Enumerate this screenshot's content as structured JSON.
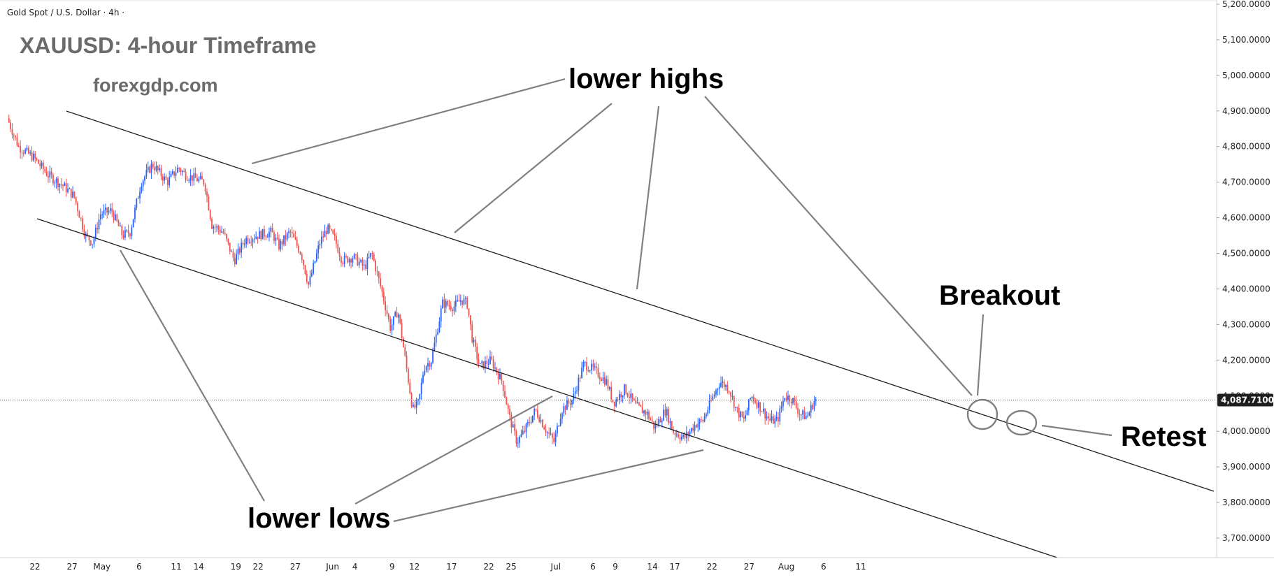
{
  "header": {
    "symbol": "Gold Spot / U.S. Dollar · 4h ·"
  },
  "overlay": {
    "title": "XAUUSD: 4-hour Timeframe",
    "website": "forexgdp.com"
  },
  "annotations": {
    "lower_highs": "lower highs",
    "lower_lows": "lower lows",
    "breakout": "Breakout",
    "retest": "Retest"
  },
  "colors": {
    "up": "#2962ff",
    "down": "#ef5350",
    "trendline": "#1e1e1e",
    "pointer": "#808080",
    "price_box": "#1e1e1e"
  },
  "chart_data": {
    "type": "candlestick",
    "symbol": "XAUUSD",
    "timeframe": "4h",
    "current_price": 4087.71,
    "current_price_label": "4,087.7100",
    "ylim": [
      3660,
      5200
    ],
    "y_ticks": [
      5200,
      5100,
      5000,
      4900,
      4800,
      4700,
      4600,
      4500,
      4400,
      4300,
      4200,
      4100,
      4000,
      3900,
      3800,
      3700
    ],
    "y_tick_labels": [
      "5,200.0000",
      "5,100.0000",
      "5,000.0000",
      "4,900.0000",
      "4,800.0000",
      "4,700.0000",
      "4,600.0000",
      "4,500.0000",
      "4,400.0000",
      "4,300.0000",
      "4,200.0000",
      "4,100.0000",
      "4,000.0000",
      "3,900.0000",
      "3,800.0000",
      "3,700.0000"
    ],
    "x_ticks": [
      {
        "label": "22",
        "day": 0
      },
      {
        "label": "27",
        "day": 5
      },
      {
        "label": "May",
        "day": 9
      },
      {
        "label": "6",
        "day": 14
      },
      {
        "label": "11",
        "day": 19
      },
      {
        "label": "14",
        "day": 22
      },
      {
        "label": "19",
        "day": 27
      },
      {
        "label": "22",
        "day": 30
      },
      {
        "label": "27",
        "day": 35
      },
      {
        "label": "Jun",
        "day": 40
      },
      {
        "label": "4",
        "day": 43
      },
      {
        "label": "9",
        "day": 48
      },
      {
        "label": "12",
        "day": 51
      },
      {
        "label": "17",
        "day": 56
      },
      {
        "label": "22",
        "day": 61
      },
      {
        "label": "25",
        "day": 64
      },
      {
        "label": "Jul",
        "day": 70
      },
      {
        "label": "6",
        "day": 75
      },
      {
        "label": "9",
        "day": 78
      },
      {
        "label": "14",
        "day": 83
      },
      {
        "label": "17",
        "day": 86
      },
      {
        "label": "22",
        "day": 91
      },
      {
        "label": "27",
        "day": 96
      },
      {
        "label": "Aug",
        "day": 101
      },
      {
        "label": "6",
        "day": 106
      },
      {
        "label": "11",
        "day": 111
      }
    ],
    "x_range_days": [
      -4,
      115
    ],
    "price_path": [
      {
        "day": -3.5,
        "price": 4880
      },
      {
        "day": -2,
        "price": 4800
      },
      {
        "day": 0,
        "price": 4770
      },
      {
        "day": 2,
        "price": 4720
      },
      {
        "day": 4,
        "price": 4690
      },
      {
        "day": 5.5,
        "price": 4660
      },
      {
        "day": 7,
        "price": 4550
      },
      {
        "day": 8,
        "price": 4530
      },
      {
        "day": 9,
        "price": 4610
      },
      {
        "day": 10.5,
        "price": 4620
      },
      {
        "day": 12,
        "price": 4550
      },
      {
        "day": 13,
        "price": 4560
      },
      {
        "day": 14.5,
        "price": 4700
      },
      {
        "day": 16,
        "price": 4750
      },
      {
        "day": 18,
        "price": 4700
      },
      {
        "day": 19.5,
        "price": 4740
      },
      {
        "day": 20.5,
        "price": 4720
      },
      {
        "day": 23,
        "price": 4700
      },
      {
        "day": 24,
        "price": 4580
      },
      {
        "day": 25.5,
        "price": 4560
      },
      {
        "day": 27,
        "price": 4480
      },
      {
        "day": 28.5,
        "price": 4540
      },
      {
        "day": 30,
        "price": 4550
      },
      {
        "day": 32,
        "price": 4560
      },
      {
        "day": 33,
        "price": 4520
      },
      {
        "day": 34.5,
        "price": 4560
      },
      {
        "day": 36,
        "price": 4500
      },
      {
        "day": 37,
        "price": 4410
      },
      {
        "day": 38.5,
        "price": 4530
      },
      {
        "day": 39.5,
        "price": 4570
      },
      {
        "day": 40.5,
        "price": 4540
      },
      {
        "day": 41.5,
        "price": 4480
      },
      {
        "day": 43,
        "price": 4490
      },
      {
        "day": 44.5,
        "price": 4460
      },
      {
        "day": 45.5,
        "price": 4500
      },
      {
        "day": 47,
        "price": 4380
      },
      {
        "day": 48,
        "price": 4290
      },
      {
        "day": 49,
        "price": 4340
      },
      {
        "day": 50,
        "price": 4200
      },
      {
        "day": 51,
        "price": 4060
      },
      {
        "day": 51.8,
        "price": 4080
      },
      {
        "day": 52.5,
        "price": 4180
      },
      {
        "day": 53.5,
        "price": 4200
      },
      {
        "day": 55,
        "price": 4360
      },
      {
        "day": 56.5,
        "price": 4350
      },
      {
        "day": 57.5,
        "price": 4370
      },
      {
        "day": 58.3,
        "price": 4360
      },
      {
        "day": 59,
        "price": 4260
      },
      {
        "day": 60,
        "price": 4180
      },
      {
        "day": 61.5,
        "price": 4200
      },
      {
        "day": 63,
        "price": 4140
      },
      {
        "day": 64,
        "price": 4040
      },
      {
        "day": 65,
        "price": 3970
      },
      {
        "day": 66,
        "price": 4000
      },
      {
        "day": 67.5,
        "price": 4060
      },
      {
        "day": 69,
        "price": 4000
      },
      {
        "day": 70,
        "price": 3970
      },
      {
        "day": 71,
        "price": 4060
      },
      {
        "day": 72.5,
        "price": 4090
      },
      {
        "day": 74,
        "price": 4190
      },
      {
        "day": 75.5,
        "price": 4170
      },
      {
        "day": 77,
        "price": 4140
      },
      {
        "day": 78,
        "price": 4080
      },
      {
        "day": 79.5,
        "price": 4120
      },
      {
        "day": 81,
        "price": 4070
      },
      {
        "day": 82.5,
        "price": 4050
      },
      {
        "day": 83.5,
        "price": 4010
      },
      {
        "day": 85,
        "price": 4060
      },
      {
        "day": 86,
        "price": 4000
      },
      {
        "day": 87.5,
        "price": 3980
      },
      {
        "day": 89,
        "price": 4020
      },
      {
        "day": 90,
        "price": 4030
      },
      {
        "day": 91,
        "price": 4080
      },
      {
        "day": 92.3,
        "price": 4140
      },
      {
        "day": 93.5,
        "price": 4120
      },
      {
        "day": 94.5,
        "price": 4060
      },
      {
        "day": 95.5,
        "price": 4030
      },
      {
        "day": 96.5,
        "price": 4100
      },
      {
        "day": 98,
        "price": 4060
      },
      {
        "day": 99,
        "price": 4030
      },
      {
        "day": 100,
        "price": 4030
      },
      {
        "day": 101,
        "price": 4100
      },
      {
        "day": 102,
        "price": 4090
      },
      {
        "day": 103,
        "price": 4050
      },
      {
        "day": 104,
        "price": 4040
      },
      {
        "day": 105,
        "price": 4087.71
      }
    ]
  }
}
